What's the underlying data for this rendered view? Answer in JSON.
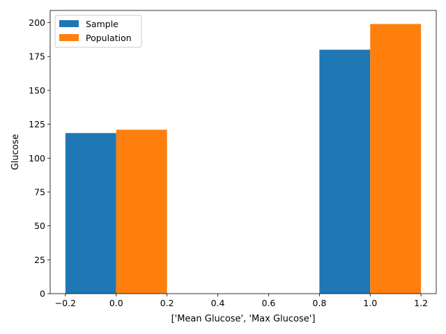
{
  "chart_data": {
    "type": "bar",
    "xlabel": "['Mean Glucose', 'Max Glucose']",
    "ylabel": "Glucose",
    "xlim": [
      -0.26,
      1.26
    ],
    "ylim": [
      0,
      209
    ],
    "xticks": [
      -0.2,
      0.0,
      0.2,
      0.4,
      0.6,
      0.8,
      1.0,
      1.2
    ],
    "xtick_labels": [
      "−0.2",
      "0.0",
      "0.2",
      "0.4",
      "0.6",
      "0.8",
      "1.0",
      "1.2"
    ],
    "yticks": [
      0,
      25,
      50,
      75,
      100,
      125,
      150,
      175,
      200
    ],
    "ytick_labels": [
      "0",
      "25",
      "50",
      "75",
      "100",
      "125",
      "150",
      "175",
      "200"
    ],
    "bar_width": 0.2,
    "grid": false,
    "legend_position": "top-left",
    "series": [
      {
        "name": "Sample",
        "color": "#1f77b4",
        "x": [
          -0.1,
          0.9
        ],
        "values": [
          118.5,
          180
        ]
      },
      {
        "name": "Population",
        "color": "#ff7f0e",
        "x": [
          0.1,
          1.1
        ],
        "values": [
          121,
          199
        ]
      }
    ]
  }
}
